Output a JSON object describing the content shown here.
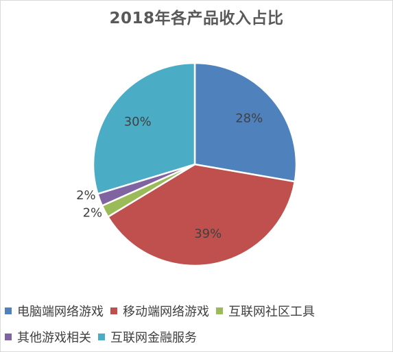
{
  "chart_data": {
    "type": "pie",
    "title": "2018年各产品收入占比",
    "categories": [
      "电脑端网络游戏",
      "移动端网络游戏",
      "互联网社区工具",
      "其他游戏相关",
      "互联网金融服务"
    ],
    "values": [
      28,
      39,
      2,
      2,
      30
    ],
    "labels": [
      "28%",
      "39%",
      "2%",
      "2%",
      "30%"
    ],
    "colors": [
      "#4f81bd",
      "#c0504d",
      "#9bbb59",
      "#8064a2",
      "#4bacc6"
    ],
    "legend_position": "bottom"
  }
}
